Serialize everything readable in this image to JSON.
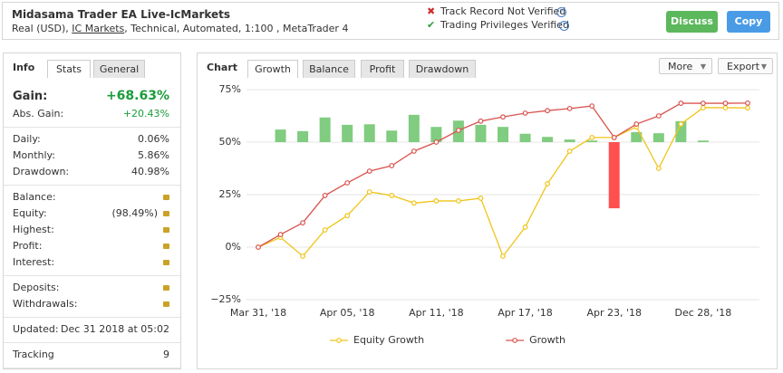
{
  "header": {
    "title": "Midasama Trader EA Live-IcMarkets",
    "subtitle": [
      "Real (USD),",
      "IC Markets",
      ", Technical, Automated, 1:100 , MetaTrader 4"
    ],
    "status": [
      {
        "text": "Track Record Not Verified",
        "verified": false
      },
      {
        "text": "Trading Privileges Verified",
        "verified": true
      }
    ],
    "buttons": [
      {
        "text": "Discuss",
        "color": "#5cb85c"
      },
      {
        "text": "Copy",
        "color": "#4a9be6"
      }
    ]
  },
  "info_panel": {
    "tabs": [
      "Info",
      "Stats",
      "General"
    ],
    "sections": [
      [
        {
          "label": "Gain:",
          "value": "+68.63%",
          "color": "#1a9c3a",
          "large": true
        },
        {
          "label": "Abs. Gain:",
          "value": "+20.43%",
          "color": "#1a9c3a"
        }
      ],
      [
        {
          "label": "Daily:",
          "value": "0.06%"
        },
        {
          "label": "Monthly:",
          "value": "5.86%"
        },
        {
          "label": "Drawdown:",
          "value": "40.98%"
        }
      ],
      [
        {
          "label": "Balance:",
          "locked": true
        },
        {
          "label": "Equity:",
          "value": "(98.49%)",
          "locked": true
        },
        {
          "label": "Highest:",
          "locked": true
        },
        {
          "label": "Profit:",
          "locked": true
        },
        {
          "label": "Interest:",
          "locked": true
        }
      ],
      [
        {
          "label": "Deposits:",
          "locked": true
        },
        {
          "label": "Withdrawals:",
          "locked": true
        }
      ],
      [
        {
          "label": "Updated:",
          "value": "Dec 31 2018 at 05:02"
        }
      ],
      [
        {
          "label": "Tracking",
          "value": "9"
        }
      ]
    ]
  },
  "chart_panel": {
    "title": "Chart",
    "tabs": [
      "Growth",
      "Balance",
      "Profit",
      "Drawdown"
    ],
    "menus": [
      "More",
      "Export"
    ]
  },
  "chart_data": {
    "type": "line",
    "categories": [
      "Mar 31, '18",
      null,
      null,
      null,
      "Apr 05, '18",
      null,
      null,
      null,
      "Apr 11, '18",
      null,
      null,
      null,
      "Apr 17, '18",
      null,
      null,
      null,
      "Apr 23, '18",
      null,
      null,
      null,
      "Dec 28, '18",
      null,
      null
    ],
    "series": [
      {
        "type": "bar",
        "axis": "y2",
        "color": "#80cc80",
        "negative_color": "#ff5050",
        "values": [
          null,
          2.4,
          2.1,
          4.7,
          3.3,
          3.4,
          2.2,
          5.2,
          2.9,
          4.1,
          3.3,
          2.9,
          1.6,
          1.0,
          0.5,
          0.3,
          -12.6,
          1.9,
          1.7,
          4.0,
          0.3,
          null,
          null
        ]
      },
      {
        "name": "Equity Growth",
        "color": "#f0c419",
        "values": [
          0,
          4.7,
          -4.3,
          8.2,
          15,
          26.3,
          24.6,
          21,
          22,
          22,
          23.3,
          -4.3,
          9.5,
          30.2,
          45.7,
          52.2,
          52.2,
          57.3,
          37.5,
          58.6,
          66.4,
          66.4,
          66.3
        ]
      },
      {
        "name": "Growth",
        "color": "#d9534f",
        "values": [
          0,
          6,
          11.6,
          24.6,
          30.6,
          36.2,
          38.8,
          45.7,
          50,
          55.6,
          60,
          62,
          63.8,
          65,
          66,
          67.2,
          52.2,
          58.6,
          62.5,
          68.5,
          68.5,
          68.5,
          68.6
        ]
      }
    ],
    "ylim": [
      -25,
      75
    ],
    "yticks": [
      {
        "value": -25,
        "label": "−25%"
      },
      {
        "value": 0,
        "label": "0%"
      },
      {
        "value": 25,
        "label": "25%"
      },
      {
        "value": 50,
        "label": "50%"
      },
      {
        "value": 75,
        "label": "75%"
      }
    ],
    "y2lim": [
      -30,
      10
    ],
    "grid": true,
    "legend": "bottom"
  }
}
